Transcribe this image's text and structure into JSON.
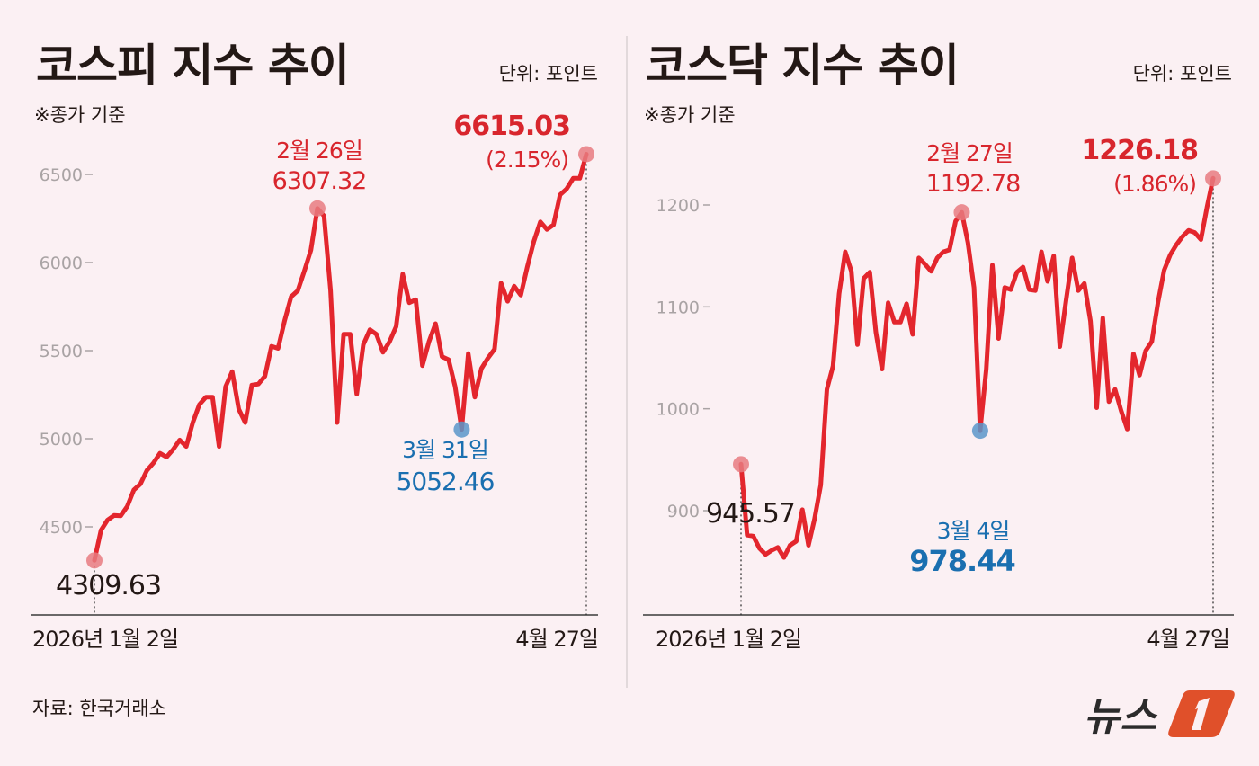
{
  "colors": {
    "line": "#e3262d",
    "peak_dot": "#e77b80",
    "low_dot": "#5b97c9",
    "peak_text": "#d8262d",
    "low_text": "#1a6fb0",
    "background": "#fbf0f3",
    "logo_accent": "#e0502a"
  },
  "source": "자료: 한국거래소",
  "logo": {
    "text": "뉴스1"
  },
  "chart_data": [
    {
      "type": "line",
      "title": "코스피 지수 추이",
      "unit": "단위: 포인트",
      "note": "※종가 기준",
      "x_start_label": "2026년 1월 2일",
      "x_end_label": "4월 27일",
      "yticks": [
        4500,
        5000,
        5500,
        6000,
        6500
      ],
      "ytick_labels": [
        "4500",
        "5000",
        "5500",
        "6000",
        "6500"
      ],
      "ylim": [
        4400,
        6600
      ],
      "grid": false,
      "values": [
        4309.63,
        4480,
        4539,
        4565,
        4562,
        4616,
        4709,
        4743,
        4820,
        4862,
        4918,
        4896,
        4939,
        4993,
        4956,
        5092,
        5194,
        5236,
        5236,
        4956,
        5296,
        5381,
        5168,
        5092,
        5304,
        5310,
        5355,
        5525,
        5513,
        5670,
        5806,
        5840,
        5951,
        6070,
        6307.32,
        6265,
        5840,
        5092,
        5593,
        5593,
        5253,
        5534,
        5619,
        5593,
        5491,
        5551,
        5636,
        5934,
        5772,
        5789,
        5415,
        5551,
        5653,
        5466,
        5449,
        5296,
        5052.46,
        5483,
        5236,
        5398,
        5458,
        5508,
        5883,
        5780,
        5866,
        5815,
        5976,
        6121,
        6231,
        6188,
        6214,
        6384,
        6418,
        6478,
        6478,
        6615.03
      ],
      "annotations": {
        "start": {
          "index": 0,
          "value": "4309.63"
        },
        "peak": {
          "index": 34,
          "date": "2월 26일",
          "value": "6307.32"
        },
        "low": {
          "index": 56,
          "date": "3월 31일",
          "value": "5052.46"
        },
        "end": {
          "index": 75,
          "value": "6615.03",
          "change": "(2.15%)"
        }
      }
    },
    {
      "type": "line",
      "title": "코스닥 지수 추이",
      "unit": "단위: 포인트",
      "note": "※종가 기준",
      "x_start_label": "2026년 1월 2일",
      "x_end_label": "4월 27일",
      "yticks": [
        900,
        1000,
        1100,
        1200
      ],
      "ytick_labels": [
        "900",
        "1000",
        "1100",
        "1200"
      ],
      "ylim": [
        850,
        1240
      ],
      "grid": false,
      "values": [
        945.57,
        876,
        875,
        863,
        857,
        861,
        864,
        854,
        866,
        870,
        901,
        866,
        892,
        925,
        1019,
        1042,
        1113,
        1154,
        1135,
        1063,
        1128,
        1134,
        1075,
        1039,
        1104,
        1085,
        1085,
        1103,
        1073,
        1148,
        1142,
        1135,
        1148,
        1154,
        1156,
        1184,
        1192.78,
        1163,
        1119,
        978.44,
        1039,
        1141,
        1069,
        1119,
        1117,
        1134,
        1139,
        1117,
        1116,
        1154,
        1125,
        1150,
        1061,
        1106,
        1148,
        1116,
        1123,
        1086,
        1001,
        1089,
        1007,
        1019,
        998,
        980,
        1054,
        1033,
        1057,
        1066,
        1104,
        1136,
        1151,
        1161,
        1169,
        1175,
        1173,
        1166,
        1198,
        1226.18
      ],
      "annotations": {
        "start": {
          "index": 0,
          "value": "945.57"
        },
        "peak": {
          "index": 36,
          "date": "2월 27일",
          "value": "1192.78"
        },
        "low": {
          "index": 39,
          "date": "3월 4일",
          "value": "978.44"
        },
        "end": {
          "index": 77,
          "value": "1226.18",
          "change": "(1.86%)"
        }
      }
    }
  ]
}
